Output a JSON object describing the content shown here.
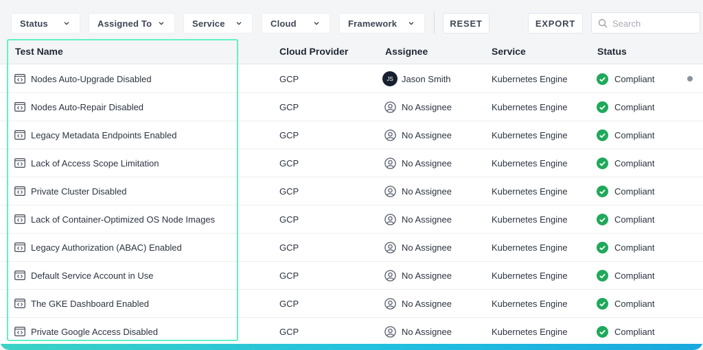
{
  "filters": [
    {
      "label": "Status"
    },
    {
      "label": "Assigned To"
    },
    {
      "label": "Service"
    },
    {
      "label": "Cloud"
    },
    {
      "label": "Framework"
    }
  ],
  "actions": {
    "reset": "RESET",
    "export": "EXPORT"
  },
  "search": {
    "placeholder": "Search",
    "value": ""
  },
  "table": {
    "columns": [
      "Test Name",
      "Cloud Provider",
      "Assignee",
      "Service",
      "Status"
    ],
    "rows": [
      {
        "test": "Nodes Auto-Upgrade Disabled",
        "cloud": "GCP",
        "assignee": "Jason Smith",
        "initials": "JS",
        "service": "Kubernetes Engine",
        "status": "Compliant"
      },
      {
        "test": "Nodes Auto-Repair Disabled",
        "cloud": "GCP",
        "assignee": "No Assignee",
        "service": "Kubernetes Engine",
        "status": "Compliant"
      },
      {
        "test": "Legacy Metadata Endpoints Enabled",
        "cloud": "GCP",
        "assignee": "No Assignee",
        "service": "Kubernetes Engine",
        "status": "Compliant"
      },
      {
        "test": "Lack of Access Scope Limitation",
        "cloud": "GCP",
        "assignee": "No Assignee",
        "service": "Kubernetes Engine",
        "status": "Compliant"
      },
      {
        "test": "Private Cluster Disabled",
        "cloud": "GCP",
        "assignee": "No Assignee",
        "service": "Kubernetes Engine",
        "status": "Compliant"
      },
      {
        "test": "Lack of Container-Optimized OS Node Images",
        "cloud": "GCP",
        "assignee": "No Assignee",
        "service": "Kubernetes Engine",
        "status": "Compliant"
      },
      {
        "test": "Legacy Authorization (ABAC) Enabled",
        "cloud": "GCP",
        "assignee": "No Assignee",
        "service": "Kubernetes Engine",
        "status": "Compliant"
      },
      {
        "test": "Default Service Account in Use",
        "cloud": "GCP",
        "assignee": "No Assignee",
        "service": "Kubernetes Engine",
        "status": "Compliant"
      },
      {
        "test": "The GKE Dashboard Enabled",
        "cloud": "GCP",
        "assignee": "No Assignee",
        "service": "Kubernetes Engine",
        "status": "Compliant"
      },
      {
        "test": "Private Google Access Disabled",
        "cloud": "GCP",
        "assignee": "No Assignee",
        "service": "Kubernetes Engine",
        "status": "Compliant"
      }
    ]
  },
  "colors": {
    "compliant": "#1fa95a",
    "highlight": "#5ff2c2",
    "avatar": "#16202e"
  },
  "icons": {
    "test": "code-window-icon",
    "assignee": "user-circle-icon",
    "status": "check-circle-icon",
    "info": "info-icon"
  }
}
